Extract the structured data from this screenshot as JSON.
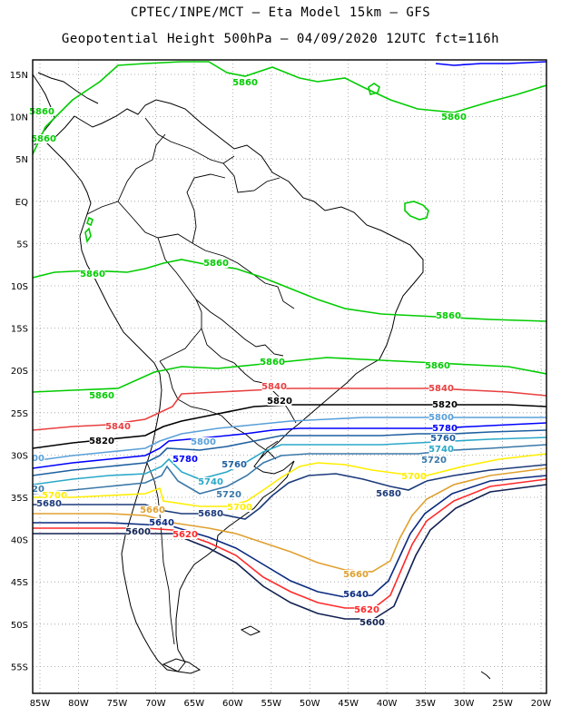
{
  "header": {
    "line1": "CPTEC/INPE/MCT – Eta Model 15km – GFS",
    "line2": "Geopotential Height 500hPa – 04/09/2020 12UTC fct=116h"
  },
  "axes": {
    "lat_labels": [
      "15N",
      "10N",
      "5N",
      "EQ",
      "5S",
      "10S",
      "15S",
      "20S",
      "25S",
      "30S",
      "35S",
      "40S",
      "45S",
      "50S",
      "55S"
    ],
    "lon_labels": [
      "85W",
      "80W",
      "75W",
      "70W",
      "65W",
      "60W",
      "55W",
      "50W",
      "45W",
      "40W",
      "35W",
      "30W",
      "25W",
      "20W"
    ]
  },
  "contour_colors": {
    "5860": "#00cc00",
    "5840": "#e84040",
    "5820": "#000000",
    "5800": "#5aa0d8",
    "5780": "#0000ff",
    "5760": "#1e5fa0",
    "5740": "#2aa8c8",
    "5720": "#3a78a8",
    "5700": "#ffee00",
    "5680": "#1b3a7a",
    "5660": "#e0a030",
    "5640": "#0a2a80",
    "5620": "#ff2a2a",
    "5600": "#102050"
  },
  "contour_labels": [
    {
      "text": "5860",
      "level": "5860"
    },
    {
      "text": "5860",
      "level": "5860"
    },
    {
      "text": "5860",
      "level": "5860"
    },
    {
      "text": "5860",
      "level": "5860"
    },
    {
      "text": "5860",
      "level": "5860"
    },
    {
      "text": "5860",
      "level": "5860"
    },
    {
      "text": "5860",
      "level": "5860"
    },
    {
      "text": "5860",
      "level": "5860"
    },
    {
      "text": "5860",
      "level": "5860"
    },
    {
      "text": "5860",
      "level": "5860"
    },
    {
      "text": "5840",
      "level": "5840"
    },
    {
      "text": "5840",
      "level": "5840"
    },
    {
      "text": "5840",
      "level": "5840"
    },
    {
      "text": "5820",
      "level": "5820"
    },
    {
      "text": "5820",
      "level": "5820"
    },
    {
      "text": "5820",
      "level": "5820"
    },
    {
      "text": "5800",
      "level": "5800"
    },
    {
      "text": "5800",
      "level": "5800"
    },
    {
      "text": "00",
      "level": "5800"
    },
    {
      "text": "5780",
      "level": "5780"
    },
    {
      "text": "5780",
      "level": "5780"
    },
    {
      "text": "5760",
      "level": "5760"
    },
    {
      "text": "5760",
      "level": "5760"
    },
    {
      "text": "5740",
      "level": "5740"
    },
    {
      "text": "5740",
      "level": "5740"
    },
    {
      "text": "5720",
      "level": "5720"
    },
    {
      "text": "5720",
      "level": "5720"
    },
    {
      "text": "20",
      "level": "5720"
    },
    {
      "text": "5700",
      "level": "5700"
    },
    {
      "text": "5700",
      "level": "5700"
    },
    {
      "text": "5700",
      "level": "5700"
    },
    {
      "text": "5680",
      "level": "5680"
    },
    {
      "text": "5680",
      "level": "5680"
    },
    {
      "text": "5680",
      "level": "5680"
    },
    {
      "text": "5660",
      "level": "5660"
    },
    {
      "text": "5660",
      "level": "5660"
    },
    {
      "text": "5640",
      "level": "5640"
    },
    {
      "text": "5640",
      "level": "5640"
    },
    {
      "text": "5620",
      "level": "5620"
    },
    {
      "text": "5620",
      "level": "5620"
    },
    {
      "text": "5600",
      "level": "5600"
    },
    {
      "text": "5600",
      "level": "5600"
    }
  ]
}
